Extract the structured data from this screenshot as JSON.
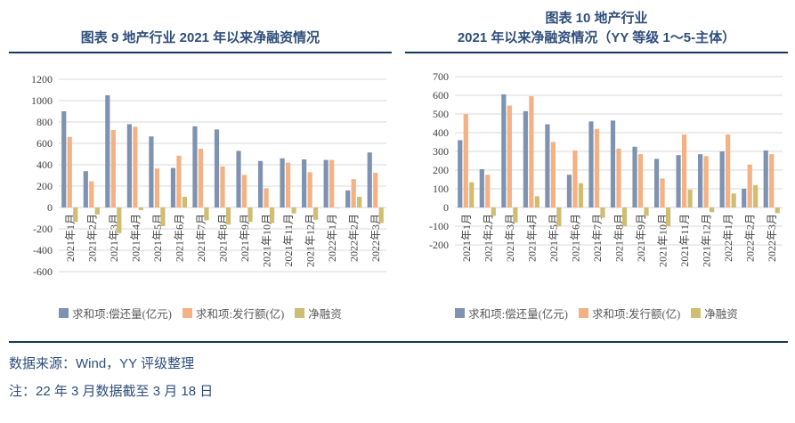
{
  "colors": {
    "title_navy": "#2F4E7B",
    "rule_navy": "#17375E",
    "gridline": "#D9D9D9",
    "axis_text": "#3F3F3F",
    "repayment_blue": "#7E93B1",
    "issuance_orange": "#F4B183",
    "net_khaki": "#CFBD72"
  },
  "footer": {
    "source": "数据来源：Wind，YY 评级整理",
    "note": "注：22 年 3 月数据截至 3 月 18 日"
  },
  "chart_data": [
    {
      "type": "bar",
      "title": "图表 9 地产行业 2021 年以来净融资情况",
      "xlabel": "",
      "ylabel": "",
      "ylim": [
        -600,
        1200
      ],
      "ystep": 200,
      "grid": true,
      "legend_position": "bottom",
      "categories": [
        "2021年1月",
        "2021年2月",
        "2021年3月",
        "2021年4月",
        "2021年5月",
        "2021年6月",
        "2021年7月",
        "2021年8月",
        "2021年9月",
        "2021年10月",
        "2021年11月",
        "2021年12月",
        "2022年1月",
        "2022年2月",
        "2022年3月"
      ],
      "series": [
        {
          "name": "求和项:偿还量(亿元)",
          "color": "#7E93B1",
          "values": [
            900,
            340,
            1050,
            780,
            665,
            370,
            760,
            730,
            530,
            435,
            460,
            450,
            445,
            160,
            515
          ]
        },
        {
          "name": "求和项:发行额(亿)",
          "color": "#F4B183",
          "values": [
            660,
            245,
            725,
            755,
            365,
            485,
            550,
            385,
            305,
            180,
            420,
            330,
            445,
            265,
            325
          ]
        },
        {
          "name": "净融资",
          "color": "#CFBD72",
          "values": [
            -135,
            -65,
            -240,
            -25,
            -175,
            100,
            -120,
            -160,
            -135,
            -145,
            -55,
            -115,
            -5,
            100,
            -145
          ]
        }
      ]
    },
    {
      "type": "bar",
      "title": "图表 10 地产行业 2021 年以来净融资情况（YY 等级 1～5-主体）",
      "title_line1": "图表 10 地产行业",
      "title_line2": "2021 年以来净融资情况（YY 等级 1～5-主体）",
      "xlabel": "",
      "ylabel": "",
      "ylim": [
        -200,
        700
      ],
      "ystep": 100,
      "grid": true,
      "legend_position": "bottom",
      "categories": [
        "2021年1月",
        "2021年2月",
        "2021年3月",
        "2021年4月",
        "2021年5月",
        "2021年6月",
        "2021年7月",
        "2021年8月",
        "2021年9月",
        "2021年10月",
        "2021年11月",
        "2021年12月",
        "2022年1月",
        "2022年2月",
        "2022年3月"
      ],
      "series": [
        {
          "name": "求和项:偿还量(亿元)",
          "color": "#7E93B1",
          "values": [
            360,
            205,
            605,
            515,
            445,
            175,
            460,
            465,
            325,
            260,
            280,
            285,
            300,
            100,
            305
          ]
        },
        {
          "name": "求和项:发行额(亿)",
          "color": "#F4B183",
          "values": [
            500,
            175,
            545,
            595,
            350,
            305,
            420,
            315,
            285,
            155,
            390,
            275,
            390,
            230,
            285
          ]
        },
        {
          "name": "净融资",
          "color": "#CFBD72",
          "values": [
            135,
            -45,
            -80,
            60,
            -100,
            130,
            -55,
            -100,
            -45,
            -100,
            95,
            -25,
            75,
            120,
            -30
          ]
        }
      ]
    }
  ]
}
